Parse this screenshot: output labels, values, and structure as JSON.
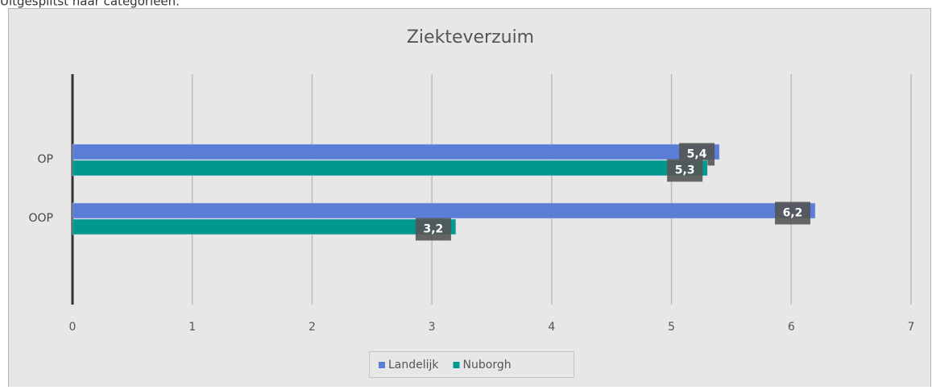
{
  "intro": "Uitgesplitst naar categorieën.",
  "chart_data": {
    "type": "hbar",
    "title": "Ziekteverzuim",
    "categories": [
      "OP",
      "OOP"
    ],
    "series": [
      {
        "name": "Landelijk",
        "color": "#5b7dd6",
        "values": [
          5.4,
          6.2
        ],
        "value_labels": [
          "5,4",
          "6,2"
        ]
      },
      {
        "name": "Nuborgh",
        "color": "#00978f",
        "values": [
          5.3,
          3.2
        ],
        "value_labels": [
          "5,3",
          "3,2"
        ]
      }
    ],
    "xlim": [
      0,
      7
    ],
    "xticks": [
      0,
      1,
      2,
      3,
      4,
      5,
      6,
      7
    ],
    "grid": true,
    "legend": "bottom"
  }
}
